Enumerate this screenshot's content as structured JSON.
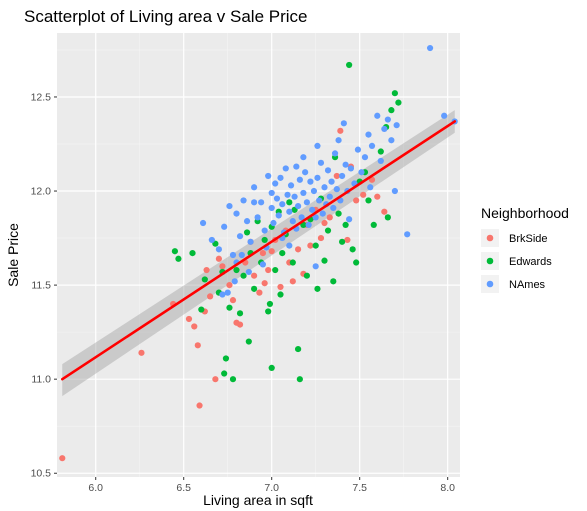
{
  "chart_data": {
    "type": "scatter",
    "title": "Scatterplot of Living area v Sale Price",
    "xlabel": "Living area in sqft",
    "ylabel": "Sale Price",
    "xlim": [
      5.78,
      8.07
    ],
    "ylim": [
      10.48,
      12.84
    ],
    "x_ticks": [
      "6.0",
      "6.5",
      "7.0",
      "7.5",
      "8.0"
    ],
    "y_ticks": [
      "10.5",
      "11.0",
      "11.5",
      "12.0",
      "12.5"
    ],
    "x_tick_values": [
      6.0,
      6.5,
      7.0,
      7.5,
      8.0
    ],
    "y_tick_values": [
      10.5,
      11.0,
      11.5,
      12.0,
      12.5
    ],
    "grid": true,
    "legend": {
      "title": "Neighborhood",
      "placement": "right",
      "entries": [
        "BrkSide",
        "Edwards",
        "NAmes"
      ]
    },
    "colors": {
      "BrkSide": "#F8766D",
      "Edwards": "#00BA38",
      "NAmes": "#619CFF",
      "trend": "#FF0000",
      "ribbon": "#999999",
      "panel": "#EBEBEB"
    },
    "trend_line": {
      "method": "linear fit with confidence band",
      "x": [
        5.81,
        8.04
      ],
      "y": [
        11.0,
        12.37
      ],
      "band_low": [
        10.91,
        12.31
      ],
      "band_high": [
        11.08,
        12.43
      ]
    },
    "series": [
      {
        "name": "BrkSide",
        "points": [
          [
            5.81,
            10.58
          ],
          [
            6.26,
            11.14
          ],
          [
            6.44,
            11.4
          ],
          [
            6.53,
            11.32
          ],
          [
            6.56,
            11.28
          ],
          [
            6.58,
            11.18
          ],
          [
            6.59,
            10.86
          ],
          [
            6.63,
            11.58
          ],
          [
            6.65,
            11.44
          ],
          [
            6.68,
            11.0
          ],
          [
            6.72,
            11.6
          ],
          [
            6.76,
            11.5
          ],
          [
            6.8,
            11.3
          ],
          [
            6.82,
            11.29
          ],
          [
            6.85,
            11.62
          ],
          [
            6.88,
            11.73
          ],
          [
            6.9,
            11.55
          ],
          [
            6.93,
            11.46
          ],
          [
            6.95,
            11.67
          ],
          [
            6.98,
            11.58
          ],
          [
            7.02,
            11.74
          ],
          [
            7.05,
            11.49
          ],
          [
            7.08,
            11.79
          ],
          [
            7.12,
            11.52
          ],
          [
            7.15,
            11.69
          ],
          [
            7.18,
            11.56
          ],
          [
            7.2,
            11.82
          ],
          [
            7.22,
            11.71
          ],
          [
            7.25,
            11.9
          ],
          [
            7.28,
            11.75
          ],
          [
            7.3,
            11.83
          ],
          [
            7.33,
            11.86
          ],
          [
            7.37,
            12.08
          ],
          [
            7.39,
            12.32
          ],
          [
            7.43,
            11.74
          ],
          [
            7.48,
            11.95
          ],
          [
            7.52,
            11.98
          ],
          [
            7.57,
            12.06
          ],
          [
            7.6,
            11.97
          ],
          [
            7.64,
            11.89
          ],
          [
            6.7,
            11.64
          ],
          [
            6.78,
            11.42
          ],
          [
            7.0,
            11.68
          ],
          [
            7.1,
            11.62
          ],
          [
            7.45,
            12.13
          ],
          [
            6.62,
            11.36
          ],
          [
            6.96,
            11.51
          ]
        ]
      },
      {
        "name": "Edwards",
        "points": [
          [
            6.45,
            11.68
          ],
          [
            6.47,
            11.64
          ],
          [
            6.55,
            11.67
          ],
          [
            6.6,
            11.37
          ],
          [
            6.62,
            11.53
          ],
          [
            6.68,
            11.72
          ],
          [
            6.7,
            11.46
          ],
          [
            6.73,
            11.03
          ],
          [
            6.74,
            11.11
          ],
          [
            6.76,
            11.38
          ],
          [
            6.78,
            11.0
          ],
          [
            6.8,
            11.58
          ],
          [
            6.82,
            11.35
          ],
          [
            6.84,
            11.55
          ],
          [
            6.86,
            11.78
          ],
          [
            6.88,
            11.67
          ],
          [
            6.9,
            11.48
          ],
          [
            6.92,
            11.84
          ],
          [
            6.94,
            11.62
          ],
          [
            6.96,
            11.74
          ],
          [
            6.98,
            11.36
          ],
          [
            7.0,
            11.81
          ],
          [
            7.02,
            11.58
          ],
          [
            7.04,
            11.89
          ],
          [
            7.06,
            11.67
          ],
          [
            7.08,
            11.77
          ],
          [
            7.1,
            11.94
          ],
          [
            7.12,
            11.62
          ],
          [
            7.15,
            11.16
          ],
          [
            7.16,
            11.0
          ],
          [
            7.18,
            11.82
          ],
          [
            7.2,
            11.55
          ],
          [
            7.22,
            11.85
          ],
          [
            7.25,
            11.71
          ],
          [
            7.28,
            11.96
          ],
          [
            7.3,
            11.63
          ],
          [
            7.32,
            11.79
          ],
          [
            7.35,
            11.52
          ],
          [
            7.38,
            11.88
          ],
          [
            7.4,
            11.73
          ],
          [
            7.42,
            11.82
          ],
          [
            7.44,
            12.67
          ],
          [
            7.46,
            11.69
          ],
          [
            7.5,
            12.05
          ],
          [
            7.55,
            11.95
          ],
          [
            7.58,
            11.82
          ],
          [
            7.62,
            12.21
          ],
          [
            7.65,
            12.34
          ],
          [
            7.68,
            12.43
          ],
          [
            7.7,
            12.52
          ],
          [
            7.72,
            12.47
          ],
          [
            7.66,
            11.86
          ],
          [
            7.26,
            11.48
          ],
          [
            7.05,
            11.45
          ],
          [
            6.99,
            11.4
          ],
          [
            7.36,
            12.18
          ],
          [
            6.87,
            11.2
          ],
          [
            7.13,
            11.9
          ],
          [
            7.48,
            11.62
          ],
          [
            7.0,
            11.06
          ],
          [
            6.72,
            11.57
          ],
          [
            7.53,
            12.1
          ]
        ]
      },
      {
        "name": "NAmes",
        "points": [
          [
            6.61,
            11.83
          ],
          [
            6.66,
            11.74
          ],
          [
            6.7,
            11.69
          ],
          [
            6.73,
            11.81
          ],
          [
            6.76,
            11.92
          ],
          [
            6.78,
            11.66
          ],
          [
            6.8,
            11.88
          ],
          [
            6.82,
            11.76
          ],
          [
            6.84,
            11.95
          ],
          [
            6.86,
            11.84
          ],
          [
            6.88,
            11.73
          ],
          [
            6.9,
            12.02
          ],
          [
            6.92,
            11.86
          ],
          [
            6.94,
            11.94
          ],
          [
            6.96,
            11.79
          ],
          [
            6.98,
            12.08
          ],
          [
            7.0,
            11.91
          ],
          [
            7.01,
            11.83
          ],
          [
            7.02,
            12.04
          ],
          [
            7.03,
            11.96
          ],
          [
            7.04,
            11.87
          ],
          [
            7.05,
            12.07
          ],
          [
            7.06,
            11.93
          ],
          [
            7.07,
            11.78
          ],
          [
            7.08,
            12.12
          ],
          [
            7.09,
            11.98
          ],
          [
            7.1,
            11.89
          ],
          [
            7.11,
            12.03
          ],
          [
            7.12,
            11.84
          ],
          [
            7.13,
            11.97
          ],
          [
            7.14,
            12.13
          ],
          [
            7.15,
            11.92
          ],
          [
            7.16,
            12.06
          ],
          [
            7.17,
            11.86
          ],
          [
            7.18,
            11.99
          ],
          [
            7.19,
            12.1
          ],
          [
            7.2,
            11.94
          ],
          [
            7.21,
            11.82
          ],
          [
            7.22,
            12.05
          ],
          [
            7.23,
            11.9
          ],
          [
            7.24,
            12.0
          ],
          [
            7.25,
            11.86
          ],
          [
            7.26,
            12.07
          ],
          [
            7.27,
            11.95
          ],
          [
            7.28,
            12.15
          ],
          [
            7.29,
            11.88
          ],
          [
            7.3,
            12.02
          ],
          [
            7.31,
            11.93
          ],
          [
            7.32,
            12.11
          ],
          [
            7.33,
            11.97
          ],
          [
            7.34,
            12.05
          ],
          [
            7.35,
            11.91
          ],
          [
            7.36,
            12.2
          ],
          [
            7.37,
            12.01
          ],
          [
            7.38,
            12.27
          ],
          [
            7.39,
            11.95
          ],
          [
            7.4,
            12.08
          ],
          [
            7.41,
            12.36
          ],
          [
            7.42,
            12.14
          ],
          [
            7.43,
            12.0
          ],
          [
            7.45,
            12.12
          ],
          [
            7.47,
            12.04
          ],
          [
            7.49,
            12.22
          ],
          [
            7.51,
            12.1
          ],
          [
            7.53,
            12.18
          ],
          [
            7.55,
            12.3
          ],
          [
            7.57,
            12.24
          ],
          [
            7.6,
            12.4
          ],
          [
            7.62,
            12.16
          ],
          [
            7.64,
            12.33
          ],
          [
            7.66,
            12.38
          ],
          [
            7.68,
            12.27
          ],
          [
            7.71,
            12.35
          ],
          [
            7.7,
            12.0
          ],
          [
            7.77,
            11.77
          ],
          [
            7.9,
            12.76
          ],
          [
            8.04,
            12.37
          ],
          [
            7.98,
            12.4
          ],
          [
            6.95,
            11.61
          ],
          [
            6.87,
            11.57
          ],
          [
            6.79,
            11.52
          ],
          [
            7.1,
            11.71
          ],
          [
            7.25,
            11.6
          ],
          [
            6.75,
            11.46
          ],
          [
            6.83,
            11.66
          ],
          [
            6.97,
            11.7
          ],
          [
            7.14,
            11.8
          ],
          [
            7.44,
            11.85
          ],
          [
            7.56,
            12.02
          ],
          [
            7.0,
            11.99
          ],
          [
            6.9,
            11.94
          ],
          [
            7.18,
            12.18
          ],
          [
            7.26,
            12.24
          ],
          [
            6.8,
            11.62
          ],
          [
            6.72,
            11.45
          ],
          [
            7.06,
            11.75
          ]
        ]
      }
    ]
  }
}
